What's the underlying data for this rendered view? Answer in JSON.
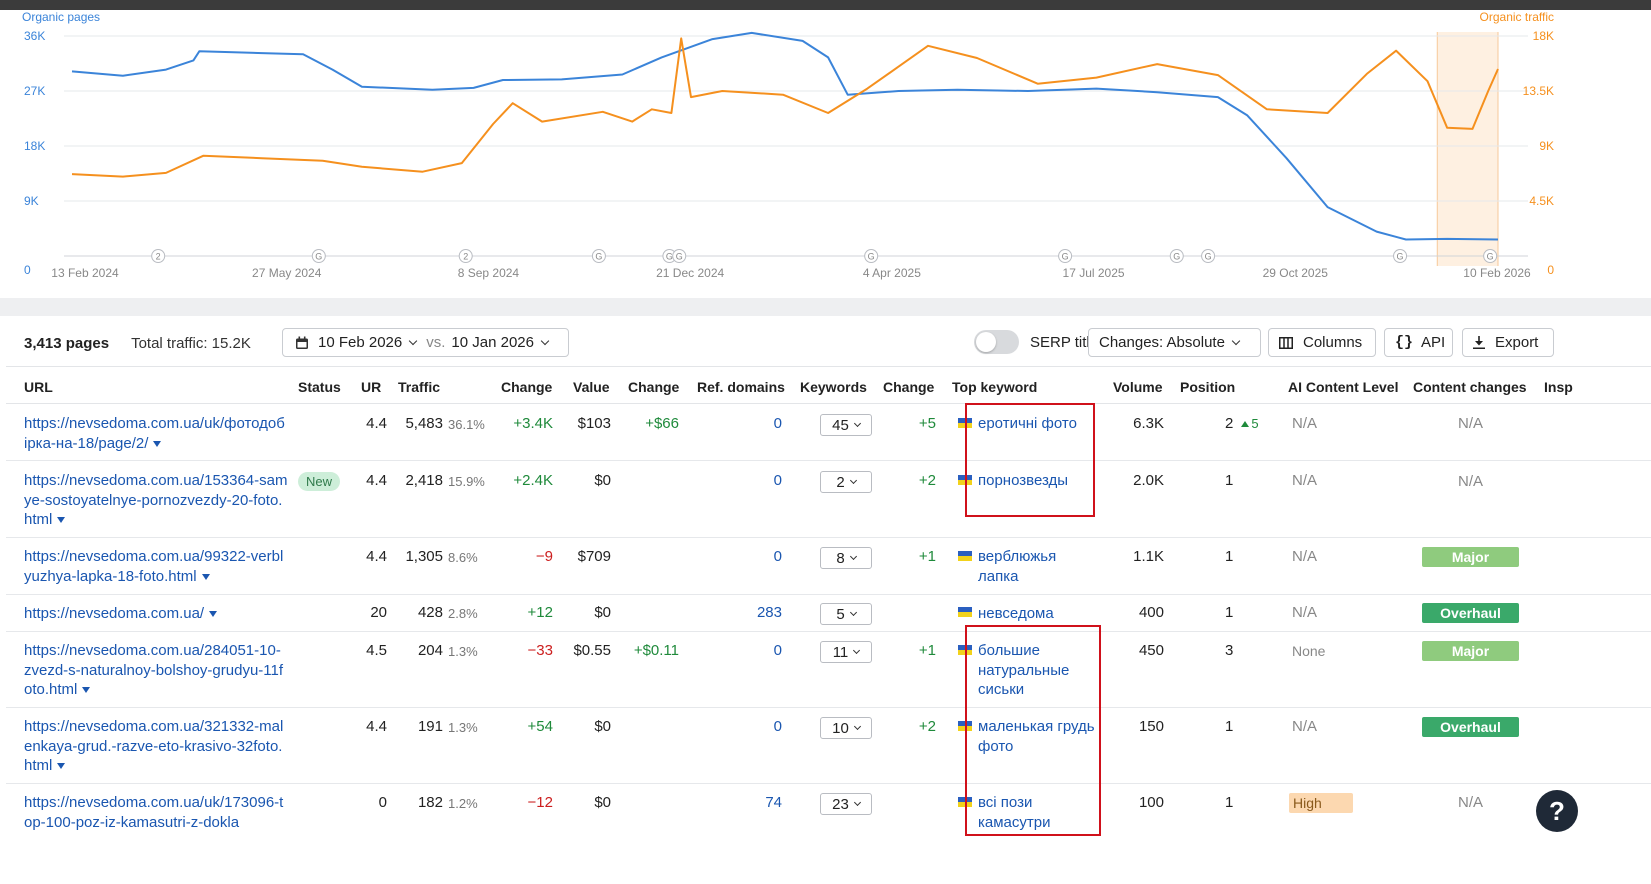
{
  "chart_data": {
    "type": "line",
    "title": "",
    "left_axis_label": "Organic pages",
    "right_axis_label": "Organic traffic",
    "left_ticks": [
      "0",
      "9K",
      "18K",
      "27K",
      "36K"
    ],
    "right_ticks": [
      "0",
      "4.5K",
      "9K",
      "13.5K",
      "18K"
    ],
    "left_ylim": [
      0,
      36000
    ],
    "right_ylim": [
      0,
      18000
    ],
    "x_labels": [
      "13 Feb 2024",
      "27 May 2024",
      "8 Sep 2024",
      "21 Dec 2024",
      "4 Apr 2025",
      "17 Jul 2025",
      "29 Oct 2025",
      "10 Feb 2026"
    ],
    "x_range": [
      "2024-02-13",
      "2026-02-10"
    ],
    "event_markers": [
      {
        "date": "2024-03-28",
        "label": "2"
      },
      {
        "date": "2024-06-18",
        "label": "G"
      },
      {
        "date": "2024-09-01",
        "label": "2"
      },
      {
        "date": "2024-11-08",
        "label": "G"
      },
      {
        "date": "2024-12-14",
        "label": "G"
      },
      {
        "date": "2024-12-19",
        "label": "G"
      },
      {
        "date": "2025-03-27",
        "label": "G"
      },
      {
        "date": "2025-07-04",
        "label": "G"
      },
      {
        "date": "2025-08-30",
        "label": "G"
      },
      {
        "date": "2025-09-15",
        "label": "G"
      },
      {
        "date": "2025-12-22",
        "label": "G"
      },
      {
        "date": "2026-02-06",
        "label": "G"
      }
    ],
    "highlight_range": [
      "2026-01-10",
      "2026-02-10"
    ],
    "series": [
      {
        "name": "Organic pages",
        "axis": "left",
        "color": "#3b84d9",
        "points": [
          [
            "2024-02-13",
            30200
          ],
          [
            "2024-03-10",
            29500
          ],
          [
            "2024-04-01",
            30500
          ],
          [
            "2024-04-15",
            32000
          ],
          [
            "2024-04-18",
            33500
          ],
          [
            "2024-05-20",
            33200
          ],
          [
            "2024-06-10",
            33000
          ],
          [
            "2024-06-25",
            30500
          ],
          [
            "2024-07-10",
            27700
          ],
          [
            "2024-08-15",
            27200
          ],
          [
            "2024-09-05",
            27500
          ],
          [
            "2024-09-20",
            28800
          ],
          [
            "2024-10-20",
            28900
          ],
          [
            "2024-11-20",
            29700
          ],
          [
            "2024-12-10",
            32500
          ],
          [
            "2025-01-05",
            35500
          ],
          [
            "2025-01-25",
            36500
          ],
          [
            "2025-02-20",
            35200
          ],
          [
            "2025-03-05",
            32500
          ],
          [
            "2025-03-15",
            26400
          ],
          [
            "2025-04-10",
            27000
          ],
          [
            "2025-05-10",
            27200
          ],
          [
            "2025-06-15",
            27000
          ],
          [
            "2025-07-20",
            27400
          ],
          [
            "2025-08-20",
            26800
          ],
          [
            "2025-09-20",
            26000
          ],
          [
            "2025-10-05",
            23000
          ],
          [
            "2025-10-25",
            16000
          ],
          [
            "2025-11-15",
            8000
          ],
          [
            "2025-12-10",
            4000
          ],
          [
            "2025-12-25",
            2700
          ],
          [
            "2026-01-15",
            2800
          ],
          [
            "2026-02-10",
            2700
          ]
        ]
      },
      {
        "name": "Organic traffic",
        "axis": "right",
        "color": "#f5901e",
        "points": [
          [
            "2024-02-13",
            6700
          ],
          [
            "2024-03-10",
            6500
          ],
          [
            "2024-04-01",
            6800
          ],
          [
            "2024-04-20",
            8200
          ],
          [
            "2024-05-20",
            8000
          ],
          [
            "2024-06-20",
            7800
          ],
          [
            "2024-07-10",
            7300
          ],
          [
            "2024-08-10",
            6900
          ],
          [
            "2024-08-30",
            7600
          ],
          [
            "2024-09-15",
            10800
          ],
          [
            "2024-09-25",
            12500
          ],
          [
            "2024-10-10",
            11000
          ],
          [
            "2024-11-10",
            11800
          ],
          [
            "2024-11-25",
            11000
          ],
          [
            "2024-12-05",
            12000
          ],
          [
            "2024-12-15",
            11700
          ],
          [
            "2024-12-20",
            17800
          ],
          [
            "2024-12-25",
            13000
          ],
          [
            "2025-01-10",
            13500
          ],
          [
            "2025-02-10",
            13200
          ],
          [
            "2025-03-05",
            11700
          ],
          [
            "2025-03-25",
            13700
          ],
          [
            "2025-04-10",
            15500
          ],
          [
            "2025-04-25",
            17200
          ],
          [
            "2025-05-20",
            16200
          ],
          [
            "2025-06-20",
            14100
          ],
          [
            "2025-07-20",
            14600
          ],
          [
            "2025-08-20",
            15700
          ],
          [
            "2025-09-20",
            14800
          ],
          [
            "2025-10-15",
            12000
          ],
          [
            "2025-11-15",
            11700
          ],
          [
            "2025-12-05",
            14900
          ],
          [
            "2025-12-20",
            16800
          ],
          [
            "2026-01-05",
            14300
          ],
          [
            "2026-01-15",
            10500
          ],
          [
            "2026-01-28",
            10400
          ],
          [
            "2026-02-05",
            13500
          ],
          [
            "2026-02-10",
            15300
          ]
        ]
      }
    ]
  },
  "toolbar": {
    "pages_count": "3,413 pages",
    "total_traffic": "Total traffic: 15.2K",
    "date_from": "10 Feb 2026",
    "vs": "vs.",
    "date_to": "10 Jan 2026",
    "serp_titles": "SERP titles",
    "changes_btn": "Changes: Absolute",
    "columns_btn": "Columns",
    "api_btn": "API",
    "export_btn": "Export"
  },
  "columns": {
    "url": "URL",
    "status": "Status",
    "ur": "UR",
    "traffic": "Traffic",
    "change": "Change",
    "value": "Value",
    "value_change": "Change",
    "ref_domains": "Ref. domains",
    "keywords": "Keywords",
    "kw_change": "Change",
    "top_keyword": "Top keyword",
    "volume": "Volume",
    "position": "Position",
    "ai_level": "AI Content Level",
    "content_changes": "Content changes",
    "inspect": "Insp"
  },
  "rows": [
    {
      "url": "https://nevsedoma.com.ua/uk/фотодобірка-на-18/page/2/",
      "status": "",
      "ur": "4.4",
      "traffic": "5,483",
      "traffic_pct": "36.1%",
      "change": "+3.4K",
      "value": "$103",
      "value_change": "+$66",
      "ref_domains": "0",
      "keywords": "45",
      "kw_change": "+5",
      "top_keyword": "еротичні фото",
      "volume": "6.3K",
      "position": "2",
      "position_change": "5",
      "ai_level": "N/A",
      "content_changes": "N/A"
    },
    {
      "url": "https://nevsedoma.com.ua/153364-samye-sostoyatelnye-pornozvezdy-20-foto.html",
      "status": "New",
      "ur": "4.4",
      "traffic": "2,418",
      "traffic_pct": "15.9%",
      "change": "+2.4K",
      "value": "$0",
      "value_change": "",
      "ref_domains": "0",
      "keywords": "2",
      "kw_change": "+2",
      "top_keyword": "порнозвезды",
      "volume": "2.0K",
      "position": "1",
      "ai_level": "N/A",
      "content_changes": "N/A"
    },
    {
      "url": "https://nevsedoma.com.ua/99322-verblyuzhya-lapka-18-foto.html",
      "status": "",
      "ur": "4.4",
      "traffic": "1,305",
      "traffic_pct": "8.6%",
      "change": "−9",
      "value": "$709",
      "value_change": "",
      "ref_domains": "0",
      "keywords": "8",
      "kw_change": "+1",
      "top_keyword": "верблюжья лапка",
      "volume": "1.1K",
      "position": "1",
      "ai_level": "N/A",
      "content_changes": "Major"
    },
    {
      "url": "https://nevsedoma.com.ua/",
      "status": "",
      "ur": "20",
      "traffic": "428",
      "traffic_pct": "2.8%",
      "change": "+12",
      "value": "$0",
      "value_change": "",
      "ref_domains": "283",
      "keywords": "5",
      "kw_change": "",
      "top_keyword": "невседома",
      "volume": "400",
      "position": "1",
      "ai_level": "N/A",
      "content_changes": "Overhaul"
    },
    {
      "url": "https://nevsedoma.com.ua/284051-10-zvezd-s-naturalnoy-bolshoy-grudyu-11foto.html",
      "status": "",
      "ur": "4.5",
      "traffic": "204",
      "traffic_pct": "1.3%",
      "change": "−33",
      "value": "$0.55",
      "value_change": "+$0.11",
      "ref_domains": "0",
      "keywords": "11",
      "kw_change": "+1",
      "top_keyword": "большие натуральные сиськи",
      "volume": "450",
      "position": "3",
      "ai_level": "None",
      "content_changes": "Major"
    },
    {
      "url": "https://nevsedoma.com.ua/321332-malenkaya-grud.-razve-eto-krasivo-32foto.html",
      "status": "",
      "ur": "4.4",
      "traffic": "191",
      "traffic_pct": "1.3%",
      "change": "+54",
      "value": "$0",
      "value_change": "",
      "ref_domains": "0",
      "keywords": "10",
      "kw_change": "+2",
      "top_keyword": "маленькая грудь фото",
      "volume": "150",
      "position": "1",
      "ai_level": "N/A",
      "content_changes": "Overhaul"
    },
    {
      "url": "https://nevsedoma.com.ua/uk/173096-top-100-poz-iz-kamasutri-z-dokla",
      "status": "",
      "ur": "0",
      "traffic": "182",
      "traffic_pct": "1.2%",
      "change": "−12",
      "value": "$0",
      "value_change": "",
      "ref_domains": "74",
      "keywords": "23",
      "kw_change": "",
      "top_keyword": "всі пози камасутри",
      "volume": "100",
      "position": "1",
      "ai_level": "High",
      "content_changes": "N/A"
    }
  ],
  "help": "?"
}
